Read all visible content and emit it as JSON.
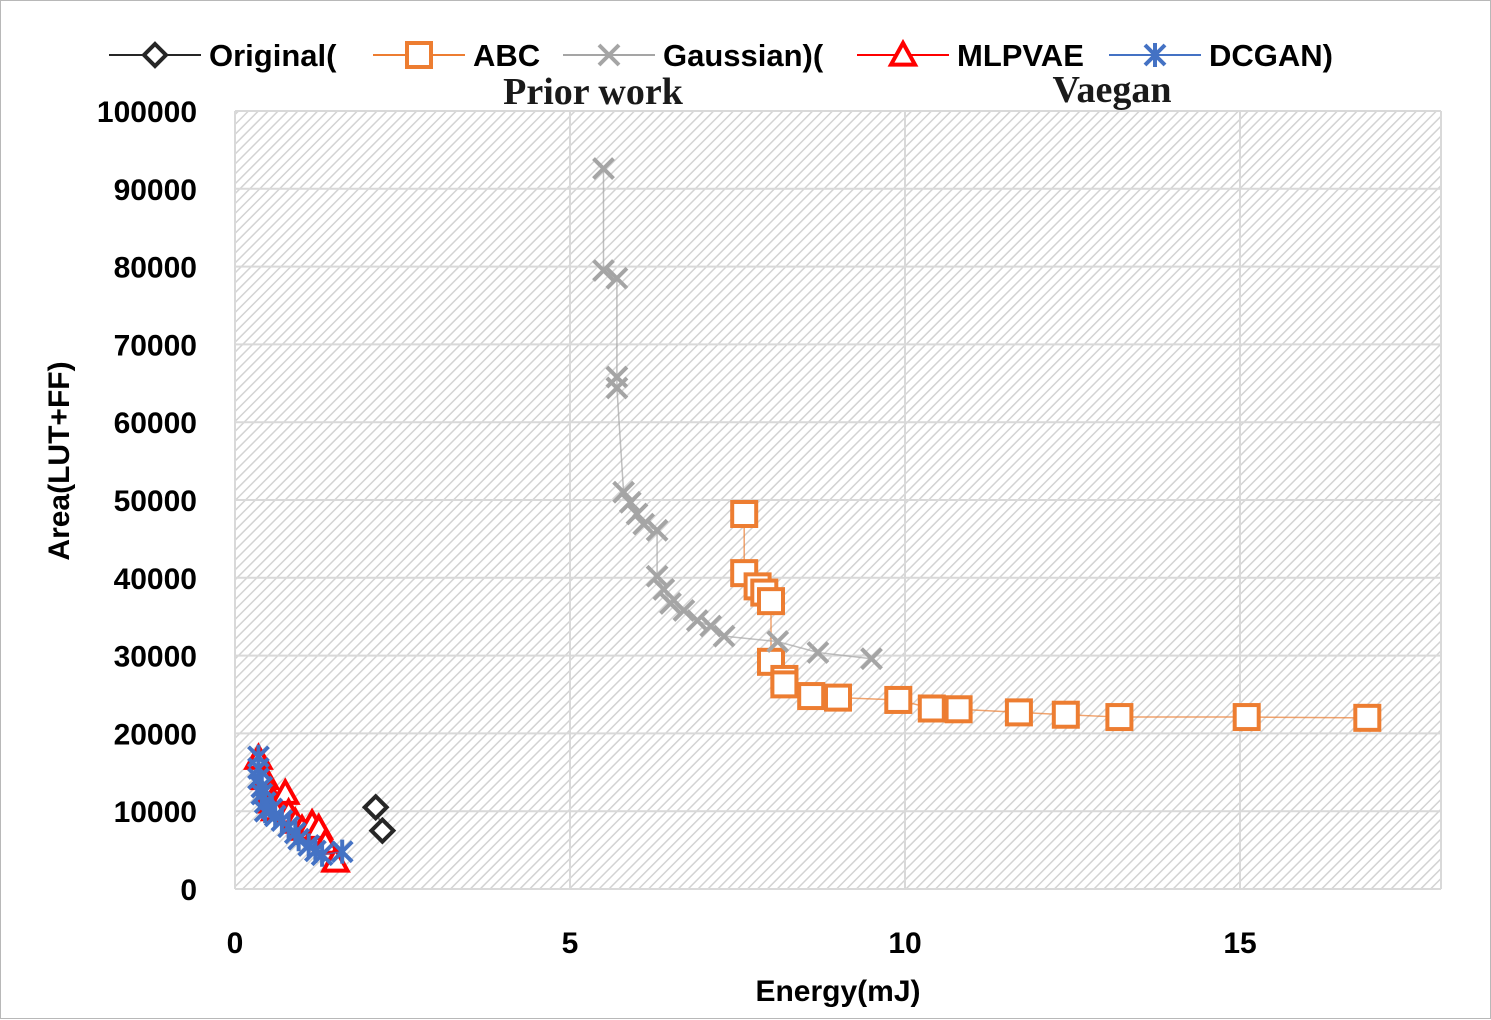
{
  "chart_data": {
    "type": "scatter",
    "title": "",
    "xlabel": "Energy(mJ)",
    "ylabel": "Area(LUT+FF)",
    "xlim": [
      0,
      18
    ],
    "ylim": [
      0,
      100000
    ],
    "x_ticks": [
      0,
      5,
      10,
      15
    ],
    "y_ticks": [
      0,
      10000,
      20000,
      30000,
      40000,
      50000,
      60000,
      70000,
      80000,
      90000,
      100000
    ],
    "grid": true,
    "legend_position": "top",
    "legend": [
      "Original(",
      "ABC",
      "Gaussian)(",
      "MLPVAE",
      "DCGAN)"
    ],
    "annotations": [
      "Prior work",
      "Vaegan"
    ],
    "series": [
      {
        "name": "Original(",
        "marker": "diamond",
        "color": "#262626",
        "points": [
          [
            2.1,
            10500
          ],
          [
            2.2,
            7500
          ]
        ]
      },
      {
        "name": "ABC",
        "marker": "square",
        "color": "#ed7d31",
        "points": [
          [
            7.6,
            48200
          ],
          [
            7.6,
            40600
          ],
          [
            7.8,
            38900
          ],
          [
            7.9,
            38100
          ],
          [
            8.0,
            37000
          ],
          [
            8.0,
            29200
          ],
          [
            8.2,
            27000
          ],
          [
            8.2,
            26300
          ],
          [
            8.6,
            24800
          ],
          [
            9.0,
            24600
          ],
          [
            9.9,
            24300
          ],
          [
            10.4,
            23200
          ],
          [
            10.8,
            23100
          ],
          [
            11.7,
            22700
          ],
          [
            12.4,
            22400
          ],
          [
            13.2,
            22100
          ],
          [
            15.1,
            22100
          ],
          [
            16.9,
            22000
          ]
        ]
      },
      {
        "name": "Gaussian)(",
        "marker": "x",
        "color": "#a5a5a5",
        "points": [
          [
            5.5,
            92600
          ],
          [
            5.5,
            79500
          ],
          [
            5.7,
            78500
          ],
          [
            5.7,
            65800
          ],
          [
            5.7,
            64400
          ],
          [
            5.8,
            51000
          ],
          [
            5.9,
            49700
          ],
          [
            6.0,
            48200
          ],
          [
            6.1,
            46900
          ],
          [
            6.3,
            46100
          ],
          [
            6.3,
            40200
          ],
          [
            6.4,
            38500
          ],
          [
            6.5,
            36700
          ],
          [
            6.7,
            35800
          ],
          [
            6.9,
            34500
          ],
          [
            7.1,
            33800
          ],
          [
            7.3,
            32500
          ],
          [
            8.1,
            31800
          ],
          [
            8.7,
            30400
          ],
          [
            9.5,
            29600
          ]
        ]
      },
      {
        "name": "MLPVAE",
        "marker": "triangle",
        "color": "#ff0000",
        "points": [
          [
            0.35,
            16800
          ],
          [
            0.45,
            14200
          ],
          [
            0.5,
            12400
          ],
          [
            0.55,
            11200
          ],
          [
            0.6,
            10200
          ],
          [
            0.75,
            12300
          ],
          [
            0.8,
            9800
          ],
          [
            0.9,
            8600
          ],
          [
            1.0,
            7700
          ],
          [
            1.15,
            8400
          ],
          [
            1.25,
            7800
          ],
          [
            1.35,
            5900
          ],
          [
            1.5,
            3600
          ]
        ]
      },
      {
        "name": "DCGAN)",
        "marker": "asterisk",
        "color": "#4472c4",
        "points": [
          [
            0.35,
            17000
          ],
          [
            0.35,
            15500
          ],
          [
            0.35,
            14200
          ],
          [
            0.4,
            13100
          ],
          [
            0.4,
            12200
          ],
          [
            0.45,
            11100
          ],
          [
            0.45,
            10000
          ],
          [
            0.55,
            10300
          ],
          [
            0.6,
            9400
          ],
          [
            0.7,
            8800
          ],
          [
            0.8,
            8000
          ],
          [
            0.9,
            7200
          ],
          [
            0.95,
            6400
          ],
          [
            1.1,
            5600
          ],
          [
            1.2,
            4900
          ],
          [
            1.3,
            4400
          ],
          [
            1.6,
            4800
          ]
        ]
      }
    ]
  }
}
